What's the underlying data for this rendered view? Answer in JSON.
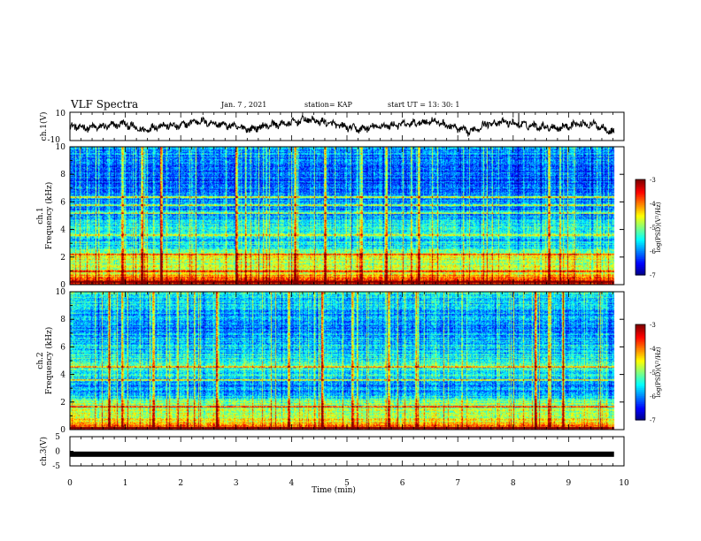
{
  "header": {
    "title": "VLF Spectra",
    "date": "Jan. 7 , 2021",
    "station": "station= KAP",
    "start": "start UT = 13: 30: 1"
  },
  "chart_data": [
    {
      "type": "line",
      "name": "ch1-waveform",
      "ylabel": "ch.1(V)",
      "ylim": [
        -10,
        10
      ],
      "ytick_labels": [
        "10",
        "-10"
      ],
      "xlim": [
        0,
        10
      ],
      "x_extent": 9.82,
      "y_mean_profile": [
        0,
        -1,
        0,
        2,
        -3,
        1,
        0,
        4,
        2,
        0,
        -2,
        1,
        2,
        5,
        3,
        0,
        -2,
        0,
        1,
        2,
        4,
        0,
        -4,
        2,
        3,
        1,
        0,
        -1,
        2,
        1,
        -4
      ],
      "note_spike_x": 8.1
    },
    {
      "type": "heatmap",
      "name": "ch1-spectrogram",
      "ylabel": "Frequency (kHz)",
      "channel_label": "ch.1",
      "ylim": [
        0,
        10
      ],
      "ytick_labels": [
        "0",
        "2",
        "4",
        "6",
        "8",
        "10"
      ],
      "xlim": [
        0,
        10
      ],
      "x_extent": 9.82,
      "colorbar": {
        "label": "log(PSD)(V²/Hz)",
        "range": [
          -7,
          -3
        ],
        "tick_labels": [
          "-3",
          "-4",
          "-5",
          "-6",
          "-7"
        ]
      },
      "freq_profile_logpsd": [
        [
          0,
          -3.2
        ],
        [
          0.4,
          -3.6
        ],
        [
          0.8,
          -4.4
        ],
        [
          1.5,
          -4.9
        ],
        [
          2,
          -4.6
        ],
        [
          2.5,
          -5.3
        ],
        [
          3.2,
          -5.6
        ],
        [
          4,
          -5.3
        ],
        [
          4.8,
          -5.7
        ],
        [
          5.5,
          -5.9
        ],
        [
          6.2,
          -5.9
        ],
        [
          7,
          -6.1
        ],
        [
          8,
          -6.1
        ],
        [
          9,
          -6.0
        ],
        [
          10,
          -5.8
        ]
      ],
      "bright_lines_khz": [
        0.2,
        1.0,
        2.2,
        3.6,
        5.2,
        5.8,
        6.4
      ],
      "event_times_min": [
        0.95,
        1.3,
        1.65,
        3.0,
        4.05,
        4.6,
        5.25,
        5.7,
        6.3,
        8.65
      ]
    },
    {
      "type": "heatmap",
      "name": "ch2-spectrogram",
      "ylabel": "Frequency (kHz)",
      "channel_label": "ch.2",
      "ylim": [
        0,
        10
      ],
      "ytick_labels": [
        "0",
        "2",
        "4",
        "6",
        "8",
        "10"
      ],
      "xlim": [
        0,
        10
      ],
      "x_extent": 9.82,
      "colorbar": {
        "label": "log(PSD)(V²/Hz)",
        "range": [
          -7,
          -3
        ],
        "tick_labels": [
          "-3",
          "-4",
          "-5",
          "-6",
          "-7"
        ]
      },
      "freq_profile_logpsd": [
        [
          0,
          -3.2
        ],
        [
          0.4,
          -4.1
        ],
        [
          1,
          -4.8
        ],
        [
          2,
          -5.0
        ],
        [
          2.5,
          -5.6
        ],
        [
          3.2,
          -6.0
        ],
        [
          3.8,
          -5.7
        ],
        [
          4.5,
          -5.2
        ],
        [
          5.5,
          -5.6
        ],
        [
          6.5,
          -5.7
        ],
        [
          7.5,
          -6.0
        ],
        [
          8.5,
          -5.8
        ],
        [
          10,
          -5.4
        ]
      ],
      "bright_lines_khz": [
        0.15,
        1.7,
        3.6,
        4.6
      ],
      "event_times_min": [
        0.7,
        0.95,
        1.5,
        2.65,
        3.95,
        4.55,
        5.1,
        5.75,
        6.25,
        8.4,
        8.65,
        8.9
      ]
    },
    {
      "type": "line",
      "name": "ch3-signal",
      "ylabel": "ch.3(V)",
      "ylim": [
        -5,
        5
      ],
      "ytick_labels": [
        "5",
        "0",
        "-5"
      ],
      "xlim": [
        0,
        10
      ],
      "x_extent": 9.82,
      "constant_value": -1
    }
  ],
  "xaxis": {
    "label": "Time (min)",
    "tick_labels": [
      "0",
      "1",
      "2",
      "3",
      "4",
      "5",
      "6",
      "7",
      "8",
      "9",
      "10"
    ]
  }
}
